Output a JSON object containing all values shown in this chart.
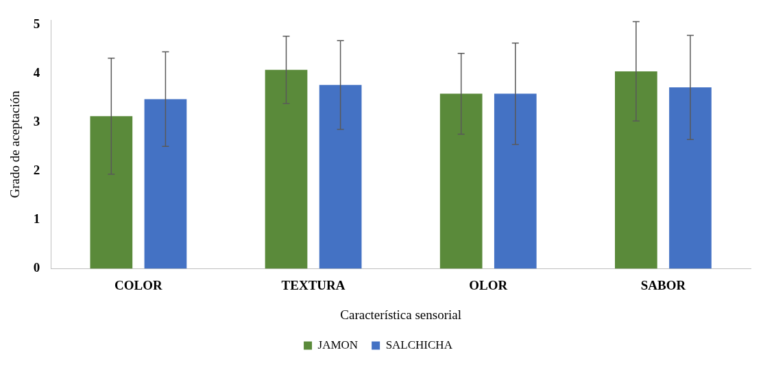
{
  "chart_data": {
    "type": "bar",
    "xlabel": "Característica sensorial",
    "ylabel": "Grado de aceptación",
    "categories": [
      "COLOR",
      "TEXTURA",
      "OLOR",
      "SABOR"
    ],
    "series": [
      {
        "name": "JAMON",
        "color": "#5a8a3a",
        "values": [
          3.13,
          4.08,
          3.59,
          4.05
        ],
        "errors": [
          1.19,
          0.69,
          0.83,
          1.02
        ]
      },
      {
        "name": "SALCHICHA",
        "color": "#4472c4",
        "values": [
          3.48,
          3.77,
          3.59,
          3.72
        ],
        "errors": [
          0.97,
          0.91,
          1.04,
          1.07
        ]
      }
    ],
    "ylim": [
      0,
      5.1
    ],
    "yticks": [
      0,
      1,
      2,
      3,
      4,
      5
    ],
    "grid": false,
    "legend": "bottom"
  }
}
